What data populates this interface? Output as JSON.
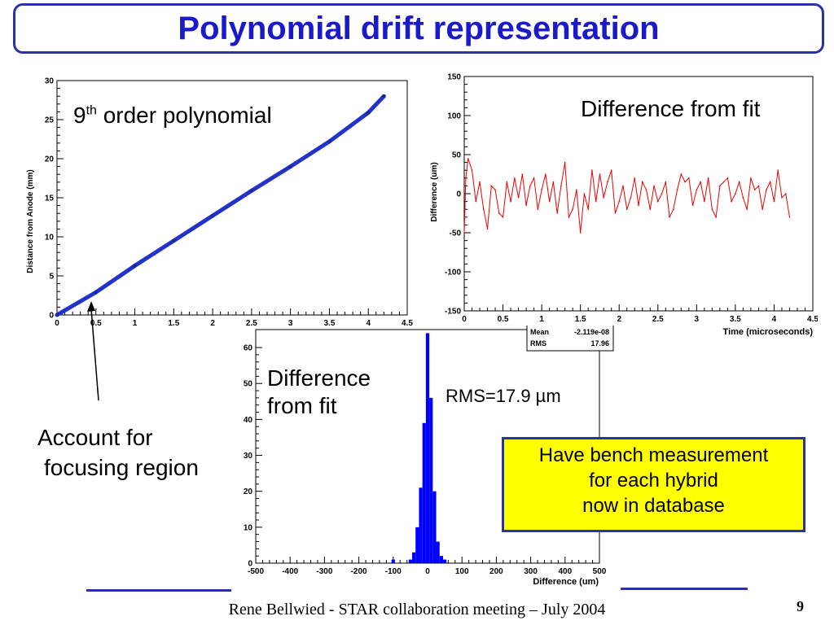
{
  "title": "Polynomial drift representation",
  "annotations": {
    "poly_base": "9",
    "poly_sup": "th",
    "poly_rest": " order polynomial",
    "diff_fit_top": "Difference from fit",
    "diff_fit_hist_line1": "Difference",
    "diff_fit_hist_line2": "from fit",
    "rms_label": "RMS=17.9 µm",
    "account_line1": "Account for",
    "account_line2": "focusing region"
  },
  "bench_box": {
    "line1": "Have bench measurement",
    "line2": "for each hybrid",
    "line3": "now in database",
    "bg_color": "#ffff00",
    "border_color": "#2b32a8"
  },
  "stats_box": {
    "mean_label": "Mean",
    "mean_value": "-2.119e-08",
    "rms_label": "RMS",
    "rms_value": "17.96"
  },
  "footer": "Rene Bellwied - STAR collaboration meeting – July 2004",
  "page_number": "9",
  "colors": {
    "title": "#1a1acb",
    "border": "#2b32a8",
    "fit_line": "#2233cc",
    "residual": "#ee0000",
    "histogram": "#0000ff"
  },
  "chart_data": [
    {
      "type": "line",
      "xlabel": "",
      "ylabel": "Distance from Anode (mm)",
      "xlim": [
        0,
        4.5
      ],
      "ylim": [
        0,
        30
      ],
      "xticks": [
        "0",
        "0.5",
        "1",
        "1.5",
        "2",
        "2.5",
        "3",
        "3.5",
        "4",
        "4.5"
      ],
      "yticks": [
        "0",
        "5",
        "10",
        "15",
        "20",
        "25",
        "30"
      ],
      "series": [
        {
          "x": [
            0,
            0.5,
            1,
            1.5,
            2,
            2.5,
            3,
            3.5,
            4,
            4.2
          ],
          "values": [
            0,
            2.9,
            6.3,
            9.5,
            12.7,
            15.9,
            19.0,
            22.2,
            25.9,
            28.0
          ]
        }
      ]
    },
    {
      "type": "line",
      "xlabel": "Time (microseconds)",
      "ylabel": "Difference (um)",
      "xlim": [
        0,
        4.5
      ],
      "ylim": [
        -150,
        150
      ],
      "xticks": [
        "0",
        "0.5",
        "1",
        "1.5",
        "2",
        "2.5",
        "3",
        "3.5",
        "4",
        "4.5"
      ],
      "yticks": [
        "-150",
        "-100",
        "-50",
        "0",
        "50",
        "100",
        "150"
      ],
      "series": [
        {
          "x": [
            0.0,
            0.02,
            0.05,
            0.1,
            0.15,
            0.2,
            0.25,
            0.3,
            0.35,
            0.4,
            0.45,
            0.5,
            0.55,
            0.6,
            0.65,
            0.7,
            0.75,
            0.8,
            0.85,
            0.9,
            0.95,
            1.0,
            1.05,
            1.1,
            1.15,
            1.2,
            1.25,
            1.3,
            1.35,
            1.4,
            1.45,
            1.5,
            1.55,
            1.6,
            1.65,
            1.7,
            1.75,
            1.8,
            1.85,
            1.9,
            1.95,
            2.0,
            2.05,
            2.1,
            2.15,
            2.2,
            2.25,
            2.3,
            2.35,
            2.4,
            2.45,
            2.5,
            2.55,
            2.6,
            2.65,
            2.7,
            2.75,
            2.8,
            2.85,
            2.9,
            2.95,
            3.0,
            3.05,
            3.1,
            3.15,
            3.2,
            3.25,
            3.3,
            3.35,
            3.4,
            3.45,
            3.5,
            3.55,
            3.6,
            3.65,
            3.7,
            3.75,
            3.8,
            3.85,
            3.9,
            3.95,
            4.0,
            4.05,
            4.1,
            4.15,
            4.2
          ],
          "values": [
            -50,
            20,
            45,
            30,
            -10,
            15,
            -20,
            -45,
            10,
            5,
            -25,
            -30,
            15,
            -10,
            20,
            -5,
            25,
            -15,
            10,
            20,
            -20,
            5,
            25,
            -10,
            15,
            -25,
            10,
            40,
            -30,
            -20,
            5,
            -50,
            0,
            -20,
            30,
            -10,
            25,
            -5,
            15,
            30,
            -25,
            -10,
            10,
            -20,
            -5,
            20,
            -15,
            15,
            5,
            -20,
            10,
            -10,
            0,
            15,
            -30,
            -20,
            5,
            25,
            15,
            20,
            -15,
            5,
            15,
            -10,
            20,
            -20,
            -30,
            10,
            15,
            20,
            -10,
            0,
            15,
            -5,
            -20,
            20,
            5,
            10,
            -20,
            5,
            15,
            -10,
            30,
            -5,
            0,
            -30
          ]
        }
      ]
    },
    {
      "type": "bar",
      "xlabel": "Difference (um)",
      "ylabel": "",
      "xlim": [
        -500,
        500
      ],
      "ylim": [
        0,
        65
      ],
      "xticks": [
        "-500",
        "-400",
        "-300",
        "-200",
        "-100",
        "0",
        "100",
        "200",
        "300",
        "400",
        "500"
      ],
      "yticks": [
        "0",
        "10",
        "20",
        "30",
        "40",
        "50",
        "60"
      ],
      "bin_width": 10,
      "bin_centers": [
        -100,
        -50,
        -40,
        -30,
        -20,
        -10,
        0,
        10,
        20,
        30,
        40,
        50
      ],
      "values": [
        1,
        1,
        3,
        10,
        21,
        39,
        64,
        46,
        20,
        6,
        2,
        1
      ]
    }
  ]
}
